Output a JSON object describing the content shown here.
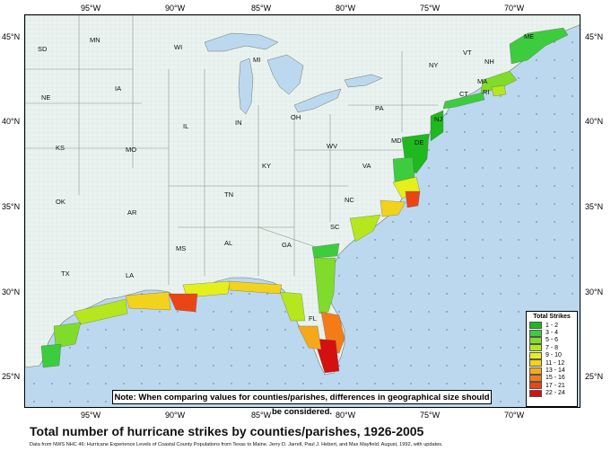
{
  "title": "Total number of hurricane strikes by counties/parishes, 1926-2005",
  "source": "Data from NWS NHC 46: Hurricane Experience Levels of Coastal County Populations from Texas to Maine. Jerry D. Jarrell, Paul J. Hebert, and Max Mayfield. August, 1992, with updates.",
  "note": "Note: When comparing values for counties/parishes, differences in geographical size should be considered.",
  "longitude_labels": [
    "95°W",
    "90°W",
    "85°W",
    "80°W",
    "75°W",
    "70°W"
  ],
  "latitude_labels": [
    "45°N",
    "40°N",
    "35°N",
    "30°N",
    "25°N"
  ],
  "state_labels": [
    "SD",
    "MN",
    "WI",
    "MI",
    "NY",
    "VT",
    "NH",
    "ME",
    "MA",
    "CT",
    "RI",
    "IA",
    "NE",
    "IL",
    "IN",
    "OH",
    "PA",
    "NJ",
    "MD",
    "DE",
    "KS",
    "MO",
    "KY",
    "WV",
    "VA",
    "OK",
    "AR",
    "TN",
    "NC",
    "SC",
    "MS",
    "AL",
    "GA",
    "TX",
    "LA",
    "FL"
  ],
  "legend": {
    "title": "Total Strikes",
    "items": [
      {
        "label": "1 - 2",
        "color": "#1fb81f"
      },
      {
        "label": "3 - 4",
        "color": "#3dcc3d"
      },
      {
        "label": "5 - 6",
        "color": "#7fdc2a"
      },
      {
        "label": "7 - 8",
        "color": "#b5e61e"
      },
      {
        "label": "9 - 10",
        "color": "#e4ef1c"
      },
      {
        "label": "11 - 12",
        "color": "#f2d21a"
      },
      {
        "label": "13 - 14",
        "color": "#f5a91a"
      },
      {
        "label": "15 - 16",
        "color": "#f37c17"
      },
      {
        "label": "17 - 21",
        "color": "#ea4515"
      },
      {
        "label": "22 - 24",
        "color": "#d41010"
      }
    ]
  },
  "colors": {
    "ocean": "#bcd8ee",
    "land": "#eaf3ef",
    "great_lakes": "#bcd8ee"
  }
}
